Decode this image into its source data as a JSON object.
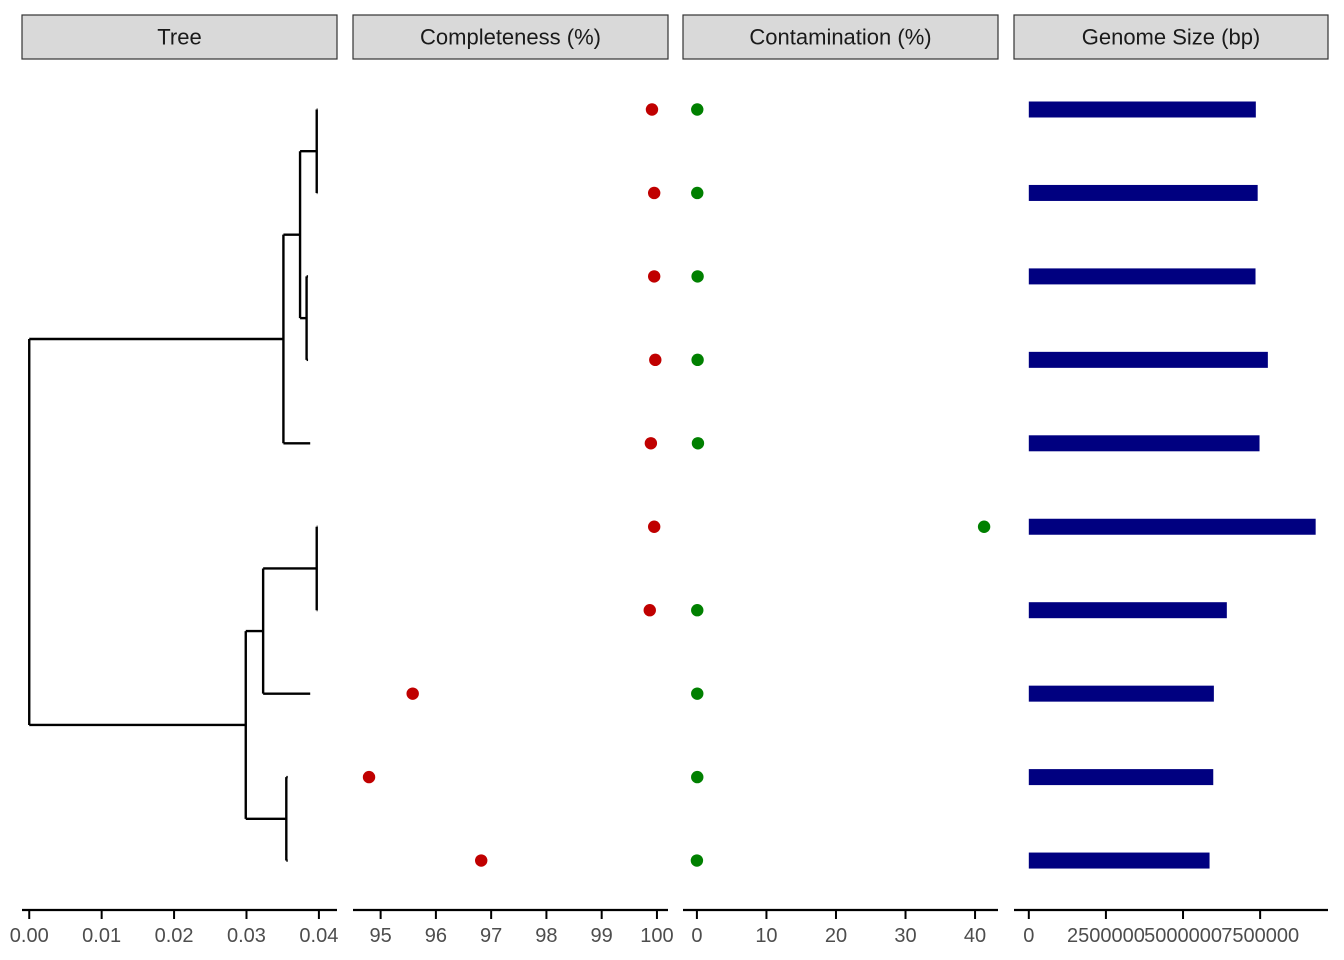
{
  "chart_data": {
    "type": "multi-panel",
    "panels": [
      {
        "title": "Tree",
        "type": "dendrogram",
        "xlim": [
          -0.001,
          0.0425
        ],
        "ticks": [
          0.0,
          0.01,
          0.02,
          0.03,
          0.04
        ],
        "tick_labels": [
          "0.00",
          "0.01",
          "0.02",
          "0.03",
          "0.04"
        ],
        "tips": [
          {
            "row": 1,
            "x": 0.0398
          },
          {
            "row": 2,
            "x": 0.0398
          },
          {
            "row": 3,
            "x": 0.0385
          },
          {
            "row": 4,
            "x": 0.0385
          },
          {
            "row": 5,
            "x": 0.0388
          },
          {
            "row": 6,
            "x": 0.0398
          },
          {
            "row": 7,
            "x": 0.0398
          },
          {
            "row": 8,
            "x": 0.0388
          },
          {
            "row": 9,
            "x": 0.0357
          },
          {
            "row": 10,
            "x": 0.0357
          }
        ],
        "internal_nodes": [
          {
            "x": 0.0397,
            "children": [
              1,
              2
            ]
          },
          {
            "x": 0.0383,
            "children": [
              3,
              4
            ]
          },
          {
            "x": 0.0374,
            "children": [
              "n0",
              "n1"
            ]
          },
          {
            "x": 0.0351,
            "children": [
              "n2",
              5
            ]
          },
          {
            "x": 0.0397,
            "children": [
              6,
              7
            ]
          },
          {
            "x": 0.0323,
            "children": [
              "n4",
              8
            ]
          },
          {
            "x": 0.0355,
            "children": [
              9,
              10
            ]
          },
          {
            "x": 0.0299,
            "children": [
              "n5",
              "n6"
            ]
          },
          {
            "x": 0.0,
            "children": [
              "n3",
              "n7"
            ]
          }
        ]
      },
      {
        "title": "Completeness (%)",
        "type": "scatter",
        "color": "#C00000",
        "xlim": [
          94.5,
          100.2
        ],
        "ticks": [
          95,
          96,
          97,
          98,
          99,
          100
        ],
        "tick_labels": [
          "95",
          "96",
          "97",
          "98",
          "99",
          "100"
        ],
        "values": [
          99.91,
          99.95,
          99.95,
          99.97,
          99.89,
          99.95,
          99.87,
          95.58,
          94.79,
          96.82
        ]
      },
      {
        "title": "Contamination (%)",
        "type": "scatter",
        "color": "#008000",
        "xlim": [
          -2.0,
          43.3
        ],
        "ticks": [
          0,
          10,
          20,
          30,
          40
        ],
        "tick_labels": [
          "0",
          "10",
          "20",
          "30",
          "40"
        ],
        "values": [
          0.05,
          0.05,
          0.1,
          0.1,
          0.15,
          41.3,
          0.05,
          0.05,
          0.05,
          0.0
        ]
      },
      {
        "title": "Genome Size (bp)",
        "type": "bar",
        "color": "#000080",
        "xlim": [
          -480000,
          9700000
        ],
        "ticks": [
          0,
          2500000,
          5000000,
          7500000
        ],
        "tick_labels": [
          "0",
          "2500000",
          "5000000",
          "7500000"
        ],
        "values": [
          7360000,
          7420000,
          7350000,
          7750000,
          7480000,
          9300000,
          6420000,
          6000000,
          5980000,
          5860000
        ]
      }
    ]
  }
}
